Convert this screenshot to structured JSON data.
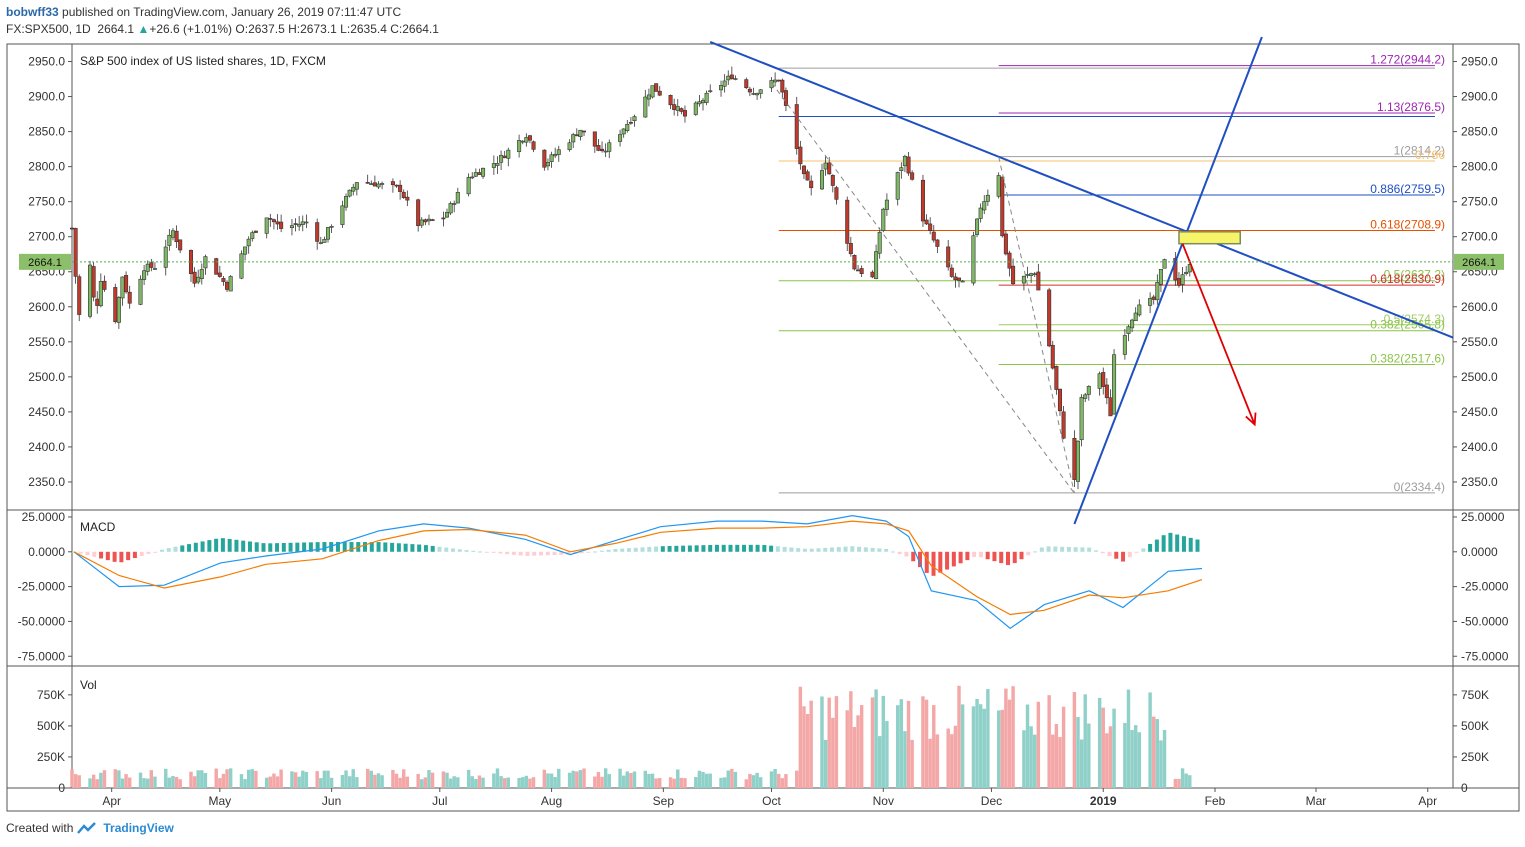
{
  "header": {
    "user": "bobwff33",
    "published_text": "published on TradingView.com, January 26, 2019 07:11:47 UTC",
    "symbol": "FX:SPX500, 1D",
    "last": "2664.1",
    "up_arrow": "▲",
    "change": "+26.6 (+1.01%)",
    "open_label": "O:",
    "open": "2637.5",
    "high_label": "H:",
    "high": "2673.1",
    "low_label": "L:",
    "low": "2635.4",
    "close_label": "C:",
    "close": "2664.1"
  },
  "footer": {
    "created_with": "Created with",
    "brand": "TradingView"
  },
  "colors": {
    "bull": "#7fb865",
    "bear": "#c0392b",
    "trend": "#1f4fc2",
    "arrow": "#e00000",
    "macd_line": "#2196f3",
    "signal_line": "#f57c00",
    "vol_up": "#8fd0c8",
    "vol_down": "#f4a7a7",
    "hist_up_strong": "#26a69a",
    "hist_up_weak": "#b2dfdb",
    "hist_down_strong": "#ef5350",
    "hist_down_weak": "#ffcdd2",
    "highlight": "#f8f46a"
  },
  "chart_data": [
    {
      "type": "candlestick",
      "title": "S&P 500 index of US listed shares, 1D, FXCM",
      "ylim": [
        2310,
        2975
      ],
      "y_ticks": [
        2350.0,
        2400.0,
        2450.0,
        2500.0,
        2550.0,
        2600.0,
        2650.0,
        2700.0,
        2750.0,
        2800.0,
        2850.0,
        2900.0,
        2950.0
      ],
      "y_tick_labels": [
        "2350.0",
        "2400.0",
        "2450.0",
        "2500.0",
        "2550.0",
        "2600.0",
        "2650.0",
        "2700.0",
        "2750.0",
        "2800.0",
        "2850.0",
        "2900.0",
        "2950.0"
      ],
      "x_tick_labels": [
        "Apr",
        "May",
        "Jun",
        "Jul",
        "Aug",
        "Sep",
        "Oct",
        "Nov",
        "Dec",
        "2019",
        "Feb",
        "Mar",
        "Apr"
      ],
      "x_tick_dates": [
        "2018-04-01",
        "2018-05-01",
        "2018-06-01",
        "2018-07-01",
        "2018-08-01",
        "2018-09-01",
        "2018-10-01",
        "2018-11-01",
        "2018-12-01",
        "2019-01-01",
        "2019-02-01",
        "2019-03-01",
        "2019-04-01"
      ],
      "x_range": [
        "2018-03-21",
        "2019-04-08"
      ],
      "last_price_label": "2664.1",
      "close_path": [
        [
          "2018-03-21",
          2712
        ],
        [
          "2018-03-22",
          2644
        ],
        [
          "2018-03-23",
          2588
        ],
        [
          "2018-03-26",
          2658
        ],
        [
          "2018-03-27",
          2612
        ],
        [
          "2018-03-28",
          2605
        ],
        [
          "2018-03-29",
          2640
        ],
        [
          "2018-04-02",
          2582
        ],
        [
          "2018-04-04",
          2644
        ],
        [
          "2018-04-06",
          2604
        ],
        [
          "2018-04-10",
          2656
        ],
        [
          "2018-04-13",
          2657
        ],
        [
          "2018-04-18",
          2708
        ],
        [
          "2018-04-24",
          2634
        ],
        [
          "2018-04-27",
          2670
        ],
        [
          "2018-05-02",
          2636
        ],
        [
          "2018-05-03",
          2629
        ],
        [
          "2018-05-09",
          2697
        ],
        [
          "2018-05-14",
          2730
        ],
        [
          "2018-05-18",
          2712
        ],
        [
          "2018-05-25",
          2721
        ],
        [
          "2018-05-29",
          2690
        ],
        [
          "2018-06-04",
          2746
        ],
        [
          "2018-06-08",
          2779
        ],
        [
          "2018-06-13",
          2776
        ],
        [
          "2018-06-20",
          2768
        ],
        [
          "2018-06-25",
          2718
        ],
        [
          "2018-07-02",
          2727
        ],
        [
          "2018-07-09",
          2785
        ],
        [
          "2018-07-17",
          2808
        ],
        [
          "2018-07-25",
          2846
        ],
        [
          "2018-07-30",
          2803
        ],
        [
          "2018-08-09",
          2853
        ],
        [
          "2018-08-15",
          2818
        ],
        [
          "2018-08-24",
          2874
        ],
        [
          "2018-08-29",
          2914
        ],
        [
          "2018-09-07",
          2872
        ],
        [
          "2018-09-14",
          2905
        ],
        [
          "2018-09-20",
          2930
        ],
        [
          "2018-09-26",
          2906
        ],
        [
          "2018-10-03",
          2925
        ],
        [
          "2018-10-05",
          2885
        ],
        [
          "2018-10-10",
          2785
        ],
        [
          "2018-10-12",
          2767
        ],
        [
          "2018-10-16",
          2809
        ],
        [
          "2018-10-24",
          2656
        ],
        [
          "2018-10-29",
          2641
        ],
        [
          "2018-11-01",
          2740
        ],
        [
          "2018-11-07",
          2813
        ],
        [
          "2018-11-12",
          2726
        ],
        [
          "2018-11-20",
          2642
        ],
        [
          "2018-11-23",
          2632
        ],
        [
          "2018-11-28",
          2743
        ],
        [
          "2018-12-03",
          2790
        ],
        [
          "2018-12-04",
          2700
        ],
        [
          "2018-12-07",
          2633
        ],
        [
          "2018-12-13",
          2650
        ],
        [
          "2018-12-17",
          2545
        ],
        [
          "2018-12-21",
          2416
        ],
        [
          "2018-12-24",
          2351
        ],
        [
          "2018-12-26",
          2467
        ],
        [
          "2018-12-31",
          2506
        ],
        [
          "2019-01-03",
          2447
        ],
        [
          "2019-01-04",
          2532
        ],
        [
          "2019-01-10",
          2596
        ],
        [
          "2019-01-15",
          2610
        ],
        [
          "2019-01-18",
          2670
        ],
        [
          "2019-01-22",
          2632
        ],
        [
          "2019-01-25",
          2664
        ]
      ],
      "trend_lines": [
        {
          "from": [
            "2018-09-14",
            2978
          ],
          "to": [
            "2019-04-08",
            2556
          ]
        },
        {
          "from": [
            "2018-12-24",
            2290
          ],
          "to": [
            "2019-02-14",
            2985
          ]
        }
      ],
      "projection_arrow": {
        "from": [
          "2019-01-23",
          2690
        ],
        "to": [
          "2019-02-12",
          2432
        ]
      },
      "dashed_swings": [
        {
          "from": [
            "2018-10-01",
            2920
          ],
          "to": [
            "2018-12-24",
            2334
          ]
        },
        {
          "from": [
            "2018-12-03",
            2814
          ],
          "to": [
            "2018-12-24",
            2334
          ]
        }
      ],
      "highlight_zone": {
        "x": [
          "2019-01-22",
          "2019-02-08"
        ],
        "y": [
          2690,
          2707
        ]
      },
      "fib_levels": [
        {
          "value": 2944.2,
          "label": "1.272(2944.2)",
          "color": "#9c27b0",
          "from": "2018-12-03",
          "to": "2019-04-03",
          "show": true
        },
        {
          "value": 2940.5,
          "label": "",
          "color": "#9e9e9e",
          "from": "2018-10-03",
          "to": "2019-04-03",
          "show": false
        },
        {
          "value": 2876.5,
          "label": "1.13(2876.5)",
          "color": "#9c27b0",
          "from": "2018-12-03",
          "to": "2019-04-03",
          "show": true
        },
        {
          "value": 2871.5,
          "label": "",
          "color": "#1f4fc2",
          "from": "2018-10-03",
          "to": "2019-04-03",
          "show": false
        },
        {
          "value": 2814.2,
          "label": "1(2814.2)",
          "color": "#9e9e9e",
          "from": "2018-12-03",
          "to": "2019-04-03",
          "show": true
        },
        {
          "value": 2808.0,
          "label": "0.786",
          "color": "#f5c069",
          "from": "2018-10-03",
          "to": "2019-04-03",
          "show": true
        },
        {
          "value": 2759.5,
          "label": "0.886(2759.5)",
          "color": "#1f4fc2",
          "from": "2018-12-03",
          "to": "2019-04-03",
          "show": true
        },
        {
          "value": 2708.9,
          "label": "0.618(2708.9)",
          "color": "#e65100",
          "from": "2018-10-03",
          "to": "2019-04-03",
          "show": true
        },
        {
          "value": 2637.2,
          "label": "0.5(2637.2)",
          "color": "#8bc34a",
          "from": "2018-10-03",
          "to": "2019-04-03",
          "show": true
        },
        {
          "value": 2630.9,
          "label": "0.618(2630.9)",
          "color": "#d32f2f",
          "from": "2018-12-03",
          "to": "2019-04-03",
          "show": true
        },
        {
          "value": 2574.3,
          "label": "0.5(2574.3)",
          "color": "#9fcc61",
          "from": "2018-12-03",
          "to": "2019-04-03",
          "show": true
        },
        {
          "value": 2565.8,
          "label": "0.382(2565.8)",
          "color": "#8bc34a",
          "from": "2018-10-03",
          "to": "2019-04-03",
          "show": true
        },
        {
          "value": 2517.6,
          "label": "0.382(2517.6)",
          "color": "#8bc34a",
          "from": "2018-12-03",
          "to": "2019-04-03",
          "show": true
        },
        {
          "value": 2334.4,
          "label": "0(2334.4)",
          "color": "#9e9e9e",
          "from": "2018-10-03",
          "to": "2019-04-03",
          "show": true
        }
      ]
    },
    {
      "type": "line",
      "title": "MACD",
      "ylim": [
        -82,
        30
      ],
      "y_ticks": [
        25,
        0,
        -25,
        -50,
        -75
      ],
      "y_tick_labels": [
        "25.0000",
        "0.0000",
        "-25.0000",
        "-50.0000",
        "-75.0000"
      ],
      "series": [
        {
          "name": "MACD",
          "values": [
            [
              0,
              0
            ],
            [
              0.04,
              -25
            ],
            [
              0.08,
              -24
            ],
            [
              0.13,
              -8
            ],
            [
              0.17,
              -3
            ],
            [
              0.22,
              2
            ],
            [
              0.27,
              15
            ],
            [
              0.31,
              20
            ],
            [
              0.35,
              17
            ],
            [
              0.4,
              9
            ],
            [
              0.44,
              -2
            ],
            [
              0.48,
              8
            ],
            [
              0.52,
              18
            ],
            [
              0.57,
              22
            ],
            [
              0.61,
              22
            ],
            [
              0.65,
              20
            ],
            [
              0.69,
              26
            ],
            [
              0.72,
              22
            ],
            [
              0.74,
              11
            ],
            [
              0.76,
              -28
            ],
            [
              0.8,
              -35
            ],
            [
              0.83,
              -55
            ],
            [
              0.86,
              -38
            ],
            [
              0.9,
              -28
            ],
            [
              0.93,
              -40
            ],
            [
              0.97,
              -14
            ],
            [
              1.0,
              -12
            ]
          ]
        },
        {
          "name": "Signal",
          "values": [
            [
              0,
              0
            ],
            [
              0.04,
              -17
            ],
            [
              0.08,
              -26
            ],
            [
              0.13,
              -18
            ],
            [
              0.17,
              -9
            ],
            [
              0.22,
              -5
            ],
            [
              0.27,
              8
            ],
            [
              0.31,
              15
            ],
            [
              0.35,
              16
            ],
            [
              0.4,
              12
            ],
            [
              0.44,
              0
            ],
            [
              0.48,
              6
            ],
            [
              0.52,
              14
            ],
            [
              0.57,
              17
            ],
            [
              0.61,
              17
            ],
            [
              0.65,
              18
            ],
            [
              0.69,
              22
            ],
            [
              0.72,
              20
            ],
            [
              0.74,
              15
            ],
            [
              0.76,
              -10
            ],
            [
              0.8,
              -32
            ],
            [
              0.83,
              -45
            ],
            [
              0.86,
              -42
            ],
            [
              0.9,
              -31
            ],
            [
              0.93,
              -33
            ],
            [
              0.97,
              -28
            ],
            [
              1.0,
              -20
            ]
          ]
        }
      ]
    },
    {
      "type": "bar",
      "title": "Vol",
      "ylim": [
        0,
        950000
      ],
      "y_ticks": [
        0,
        250000,
        500000,
        750000
      ],
      "y_tick_labels": [
        "0",
        "250K",
        "500K",
        "750K"
      ]
    }
  ]
}
